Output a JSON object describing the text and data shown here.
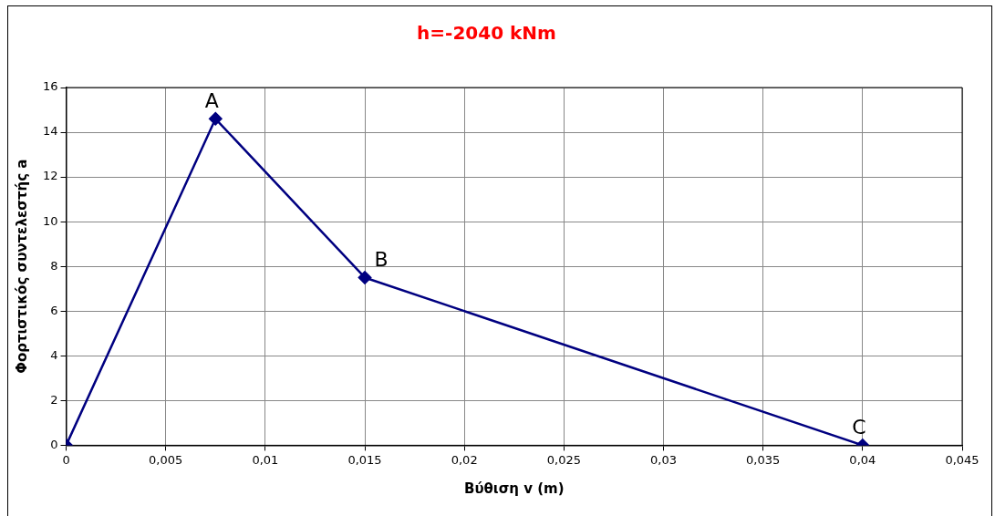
{
  "chart_data": {
    "type": "line",
    "title": "h=-2040 kNm",
    "xlabel": "Βύθιση v (m)",
    "ylabel": "Φορτιστικός συντελεστής a",
    "x": [
      0,
      0.0075,
      0.015,
      0.04
    ],
    "series": [
      {
        "color": "#000080",
        "values": [
          0,
          14.6,
          7.5,
          0
        ]
      }
    ],
    "xlim": [
      0,
      0.045
    ],
    "xticks": [
      0,
      {
        "value": 0.005,
        "label": "0,005"
      },
      {
        "value": 0.01,
        "label": "0,01"
      },
      {
        "value": 0.015,
        "label": "0,015"
      },
      {
        "value": 0.02,
        "label": "0,02"
      },
      {
        "value": 0.025,
        "label": "0,025"
      },
      {
        "value": 0.03,
        "label": "0,03"
      },
      {
        "value": 0.035,
        "label": "0,035"
      },
      {
        "value": 0.04,
        "label": "0,04"
      },
      {
        "value": 0.045,
        "label": "0,045"
      }
    ],
    "ylim": [
      0,
      16
    ],
    "yticks": [
      0,
      2,
      4,
      6,
      8,
      10,
      12,
      14,
      16
    ],
    "annotations": [
      {
        "text": "A",
        "x": 0.0075,
        "y": 14.6
      },
      {
        "text": "B",
        "x": 0.015,
        "y": 7.5
      },
      {
        "text": "C",
        "x": 0.04,
        "y": 0
      }
    ],
    "grid": true,
    "legend": false,
    "marker": "diamond",
    "line_style": "solid"
  }
}
